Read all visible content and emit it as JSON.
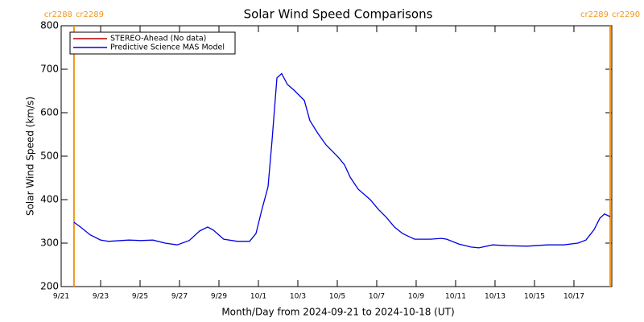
{
  "chart_data": {
    "type": "line",
    "title": "Solar Wind Speed Comparisons",
    "x_label": "Month/Day from 2024-09-21 to 2024-10-18 (UT)",
    "y_label": "Solar Wind Speed (km/s)",
    "xlim": [
      0,
      27.92
    ],
    "ylim": [
      200,
      800
    ],
    "xticks": [
      {
        "value": 0,
        "label": "9/21"
      },
      {
        "value": 2,
        "label": "9/23"
      },
      {
        "value": 4,
        "label": "9/25"
      },
      {
        "value": 6,
        "label": "9/27"
      },
      {
        "value": 8,
        "label": "9/29"
      },
      {
        "value": 10,
        "label": "10/1"
      },
      {
        "value": 12,
        "label": "10/3"
      },
      {
        "value": 14,
        "label": "10/5"
      },
      {
        "value": 16,
        "label": "10/7"
      },
      {
        "value": 18,
        "label": "10/9"
      },
      {
        "value": 20,
        "label": "10/11"
      },
      {
        "value": 22,
        "label": "10/13"
      },
      {
        "value": 24,
        "label": "10/15"
      },
      {
        "value": 26,
        "label": "10/17"
      }
    ],
    "yticks": [
      200,
      300,
      400,
      500,
      600,
      700,
      800
    ],
    "legend_position": "upper left",
    "cr_markers": [
      {
        "x": 0.65,
        "label_left": "cr2288",
        "label_right": "cr2289",
        "color": "#f0961e"
      },
      {
        "x": 27.84,
        "label_left": "cr2289",
        "label_right": "cr2290",
        "color": "#f0961e"
      }
    ],
    "x": [
      0.65,
      0.98,
      1.47,
      2.0,
      2.4,
      3.43,
      4.04,
      4.65,
      5.27,
      5.88,
      6.49,
      7.02,
      7.43,
      7.71,
      8.24,
      8.94,
      9.55,
      9.88,
      10.16,
      10.49,
      10.69,
      10.94,
      11.18,
      11.47,
      11.8,
      12.33,
      12.61,
      13.02,
      13.43,
      14.04,
      14.37,
      14.65,
      15.06,
      15.67,
      16.08,
      16.49,
      16.9,
      17.31,
      17.92,
      18.73,
      19.27,
      19.55,
      20.16,
      20.78,
      21.18,
      21.88,
      22.61,
      23.63,
      24.65,
      25.47,
      26.2,
      26.61,
      27.02,
      27.31,
      27.55,
      27.84
    ],
    "series": [
      {
        "name": "STEREO-Ahead (No data)",
        "color": "#b00000",
        "values": [
          null,
          null,
          null,
          null,
          null,
          null,
          null,
          null,
          null,
          null,
          null,
          null,
          null,
          null,
          null,
          null,
          null,
          null,
          null,
          null,
          null,
          null,
          null,
          null,
          null,
          null,
          null,
          null,
          null,
          null,
          null,
          null,
          null,
          null,
          null,
          null,
          null,
          null,
          null,
          null,
          null,
          null,
          null,
          null,
          null,
          null,
          null,
          null,
          null,
          null,
          null,
          null,
          null,
          null,
          null,
          null
        ]
      },
      {
        "name": "Predictive Science MAS Model",
        "color": "#0000e0",
        "values": [
          348,
          337,
          319,
          307,
          304,
          307,
          306,
          307,
          300,
          296,
          306,
          328,
          337,
          330,
          309,
          304,
          304,
          322,
          374,
          430,
          535,
          680,
          690,
          665,
          652,
          628,
          582,
          552,
          526,
          498,
          480,
          452,
          424,
          400,
          378,
          359,
          337,
          322,
          309,
          309,
          311,
          309,
          298,
          291,
          289,
          296,
          294,
          293,
          296,
          296,
          300,
          307,
          331,
          357,
          367,
          361
        ]
      }
    ]
  }
}
